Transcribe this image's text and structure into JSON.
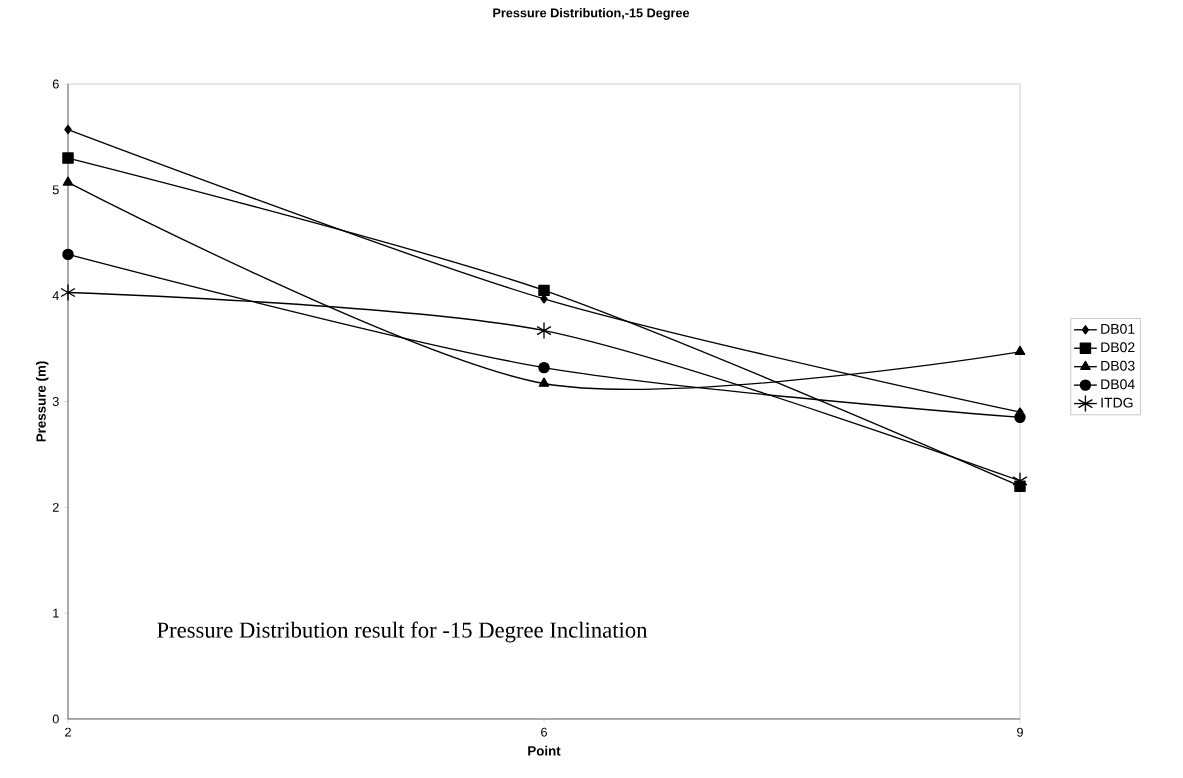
{
  "chart_data": {
    "type": "line",
    "title": "Pressure Distribution,-15 Degree",
    "xlabel": "Point",
    "ylabel": "Pressure (m)",
    "categories": [
      "2",
      "6",
      "9"
    ],
    "series": [
      {
        "name": "DB01",
        "color": "#000000",
        "marker": "diamond",
        "values": [
          5.57,
          3.97,
          2.9
        ]
      },
      {
        "name": "DB02",
        "color": "#000000",
        "marker": "square",
        "values": [
          5.3,
          4.05,
          2.2
        ]
      },
      {
        "name": "DB03",
        "color": "#000000",
        "marker": "triangle",
        "values": [
          5.07,
          3.17,
          3.47
        ]
      },
      {
        "name": "DB04",
        "color": "#000000",
        "marker": "circle",
        "values": [
          4.39,
          3.32,
          2.85
        ]
      },
      {
        "name": "ITDG",
        "color": "#000000",
        "marker": "cross",
        "values": [
          4.03,
          3.67,
          2.25
        ]
      }
    ],
    "ylim": [
      0,
      6
    ],
    "yticks": [
      0,
      1,
      2,
      3,
      4,
      5,
      6
    ],
    "grid": false,
    "legend": "right",
    "line_style": "solid",
    "annotations": [
      "Pressure Distribution result for -15 Degree Inclination"
    ]
  }
}
